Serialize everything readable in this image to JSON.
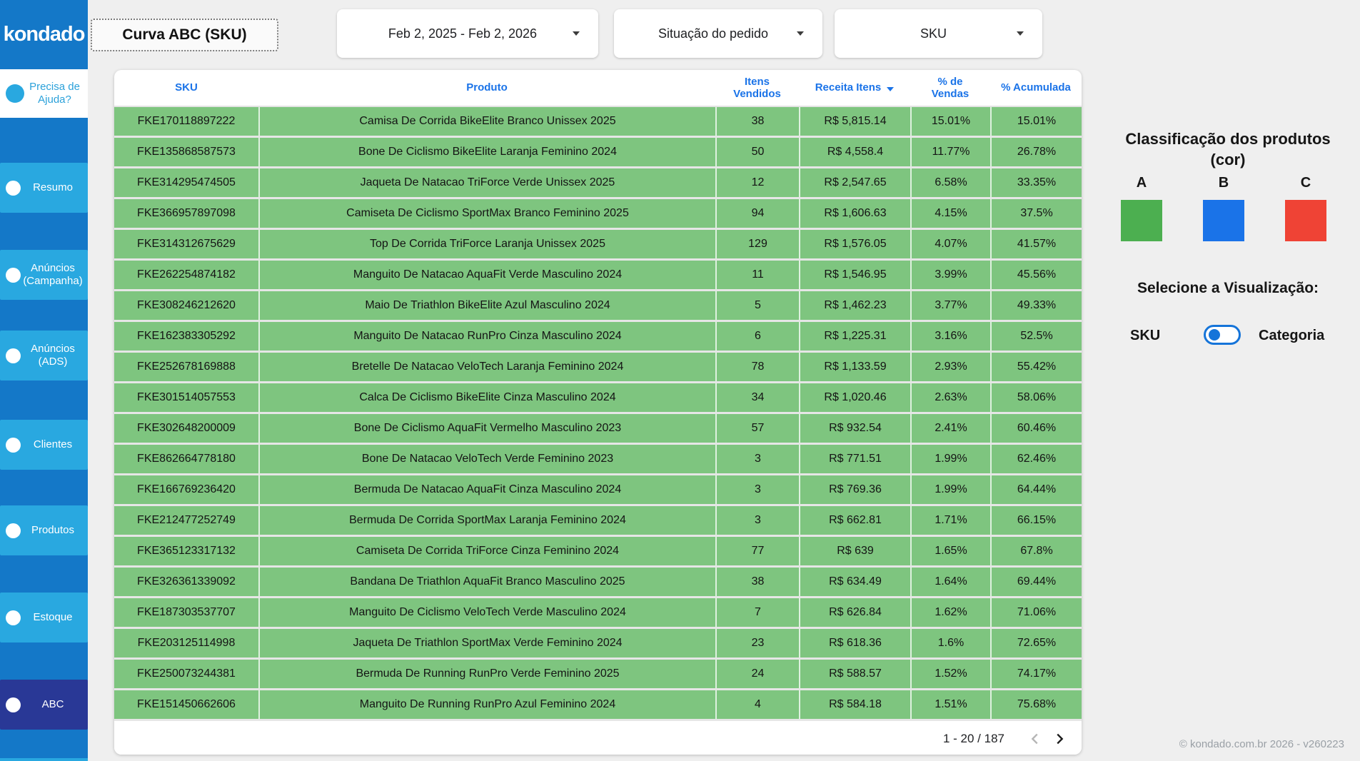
{
  "sidebar": {
    "logo": "kondado",
    "help_label": "Precisa de Ajuda?",
    "items": [
      {
        "id": "resumo",
        "label": "Resumo",
        "active": false
      },
      {
        "id": "anuncios-campanha",
        "label": "Anúncios (Campanha)",
        "active": false
      },
      {
        "id": "anuncios-ads",
        "label": "Anúncios (ADS)",
        "active": false
      },
      {
        "id": "clientes",
        "label": "Clientes",
        "active": false
      },
      {
        "id": "produtos",
        "label": "Produtos",
        "active": false
      },
      {
        "id": "estoque",
        "label": "Estoque",
        "active": false
      },
      {
        "id": "abc",
        "label": "ABC",
        "active": true
      }
    ]
  },
  "header": {
    "title": "Curva ABC (SKU)",
    "filters": [
      {
        "label": "Feb 2, 2025 - Feb 2, 2026"
      },
      {
        "label": "Situação do pedido"
      },
      {
        "label": "SKU"
      }
    ]
  },
  "table": {
    "columns": [
      "SKU",
      "Produto",
      "Itens\nVendidos",
      "Receita Itens",
      "% de\nVendas",
      "% Acumulada"
    ],
    "sorted_column": "Receita Itens",
    "sort_direction": "desc",
    "rows": [
      [
        "FKE170118897222",
        "Camisa De Corrida BikeElite Branco Unissex 2025",
        "38",
        "R$ 5,815.14",
        "15.01%",
        "15.01%"
      ],
      [
        "FKE135868587573",
        "Bone De Ciclismo BikeElite Laranja Feminino 2024",
        "50",
        "R$ 4,558.4",
        "11.77%",
        "26.78%"
      ],
      [
        "FKE314295474505",
        "Jaqueta De Natacao TriForce Verde Unissex 2025",
        "12",
        "R$ 2,547.65",
        "6.58%",
        "33.35%"
      ],
      [
        "FKE366957897098",
        "Camiseta De Ciclismo SportMax Branco Feminino 2025",
        "94",
        "R$ 1,606.63",
        "4.15%",
        "37.5%"
      ],
      [
        "FKE314312675629",
        "Top De Corrida TriForce Laranja Unissex 2025",
        "129",
        "R$ 1,576.05",
        "4.07%",
        "41.57%"
      ],
      [
        "FKE262254874182",
        "Manguito De Natacao AquaFit Verde Masculino 2024",
        "11",
        "R$ 1,546.95",
        "3.99%",
        "45.56%"
      ],
      [
        "FKE308246212620",
        "Maio De Triathlon BikeElite Azul Masculino 2024",
        "5",
        "R$ 1,462.23",
        "3.77%",
        "49.33%"
      ],
      [
        "FKE162383305292",
        "Manguito De Natacao RunPro Cinza Masculino 2024",
        "6",
        "R$ 1,225.31",
        "3.16%",
        "52.5%"
      ],
      [
        "FKE252678169888",
        "Bretelle De Natacao VeloTech Laranja Feminino 2024",
        "78",
        "R$ 1,133.59",
        "2.93%",
        "55.42%"
      ],
      [
        "FKE301514057553",
        "Calca De Ciclismo BikeElite Cinza Masculino 2024",
        "34",
        "R$ 1,020.46",
        "2.63%",
        "58.06%"
      ],
      [
        "FKE302648200009",
        "Bone De Ciclismo AquaFit Vermelho Masculino 2023",
        "57",
        "R$ 932.54",
        "2.41%",
        "60.46%"
      ],
      [
        "FKE862664778180",
        "Bone De Natacao VeloTech Verde Feminino 2023",
        "3",
        "R$ 771.51",
        "1.99%",
        "62.46%"
      ],
      [
        "FKE166769236420",
        "Bermuda De Natacao AquaFit Cinza Masculino 2024",
        "3",
        "R$ 769.36",
        "1.99%",
        "64.44%"
      ],
      [
        "FKE212477252749",
        "Bermuda De Corrida SportMax Laranja Feminino 2024",
        "3",
        "R$ 662.81",
        "1.71%",
        "66.15%"
      ],
      [
        "FKE365123317132",
        "Camiseta De Corrida TriForce Cinza Feminino 2024",
        "77",
        "R$ 639",
        "1.65%",
        "67.8%"
      ],
      [
        "FKE326361339092",
        "Bandana De Triathlon AquaFit Branco Masculino 2025",
        "38",
        "R$ 634.49",
        "1.64%",
        "69.44%"
      ],
      [
        "FKE187303537707",
        "Manguito De Ciclismo VeloTech Verde Masculino 2024",
        "7",
        "R$ 626.84",
        "1.62%",
        "71.06%"
      ],
      [
        "FKE203125114998",
        "Jaqueta De Triathlon SportMax Verde Feminino 2024",
        "23",
        "R$ 618.36",
        "1.6%",
        "72.65%"
      ],
      [
        "FKE250073244381",
        "Bermuda De Running RunPro Verde Feminino 2025",
        "24",
        "R$ 588.57",
        "1.52%",
        "74.17%"
      ],
      [
        "FKE151450662606",
        "Manguito De Running RunPro Azul Feminino 2024",
        "4",
        "R$ 584.18",
        "1.51%",
        "75.68%"
      ]
    ],
    "pagination": {
      "label": "1 - 20 / 187"
    }
  },
  "legend": {
    "title": "Classificação dos produtos (cor)",
    "classes": [
      {
        "label": "A",
        "color": "#4CAF50"
      },
      {
        "label": "B",
        "color": "#1A73E8"
      },
      {
        "label": "C",
        "color": "#EF4335"
      }
    ]
  },
  "visualization": {
    "title": "Selecione a Visualização:",
    "option_left": "SKU",
    "option_right": "Categoria",
    "selected": "SKU"
  },
  "footer": {
    "copyright": "© kondado.com.br 2026 - v260223"
  },
  "colors": {
    "sidebar_bg": "#1478C8",
    "sidebar_item_bg": "#29A8E0",
    "sidebar_item_active_bg": "#293896",
    "accent_blue": "#1A73E8",
    "row_class_a": "#7EC57F",
    "toggle_blue": "#1574D9"
  }
}
